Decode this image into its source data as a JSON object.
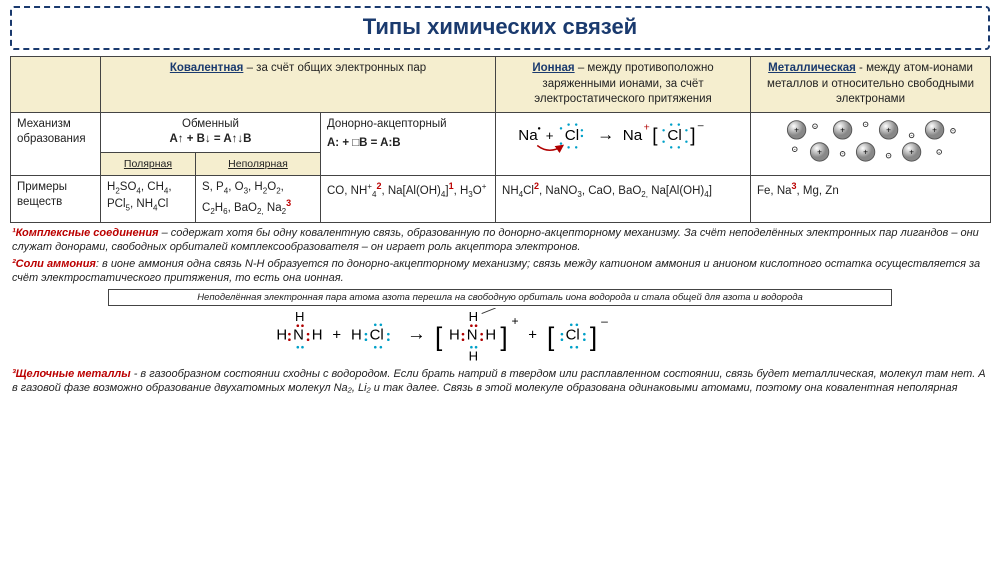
{
  "colors": {
    "navy": "#1a3a6e",
    "beige": "#f5eecf",
    "red": "#b00000",
    "cyan": "#00a0c8",
    "border": "#444444",
    "bg": "#ffffff"
  },
  "title": "Типы химических связей",
  "columns": {
    "covalent": {
      "name": "Ковалентная",
      "desc": "– за счёт общих электронных пар",
      "exchange": "Обменный",
      "exchange_formula": "A↑ + B↓ = A↑↓B",
      "donor": "Донорно-акцепторный",
      "donor_formula": "A: + □B = A:B",
      "polar": "Полярная",
      "nonpolar": "Неполярная"
    },
    "ionic": {
      "name": "Ионная",
      "desc": "– между противоположно заряженными ионами, за счёт электростатического притяжения"
    },
    "metallic": {
      "name": "Металлическая",
      "desc": "- между атом-ионами металлов и относительно свободными электронами"
    }
  },
  "rows": {
    "mechanism": "Механизм образования",
    "examples": "Примеры веществ"
  },
  "examples": {
    "polar": "H₂SO₄, CH₄, PCl₅, NH₄Cl",
    "nonpolar_html": "S, P<sub>4</sub>, O<sub>3</sub>, H<sub>2</sub>O<sub>2</sub>, C<sub>2</sub>H<sub>6</sub>, BaO<sub>2,</sub> Na<sub>2</sub><sup class='sup'>3</sup>",
    "donor_html": "CO, NH<sup>+</sup><sub>4</sub><sup class='sup'>2</sup>, Na[Al(OH)<sub>4</sub>]<sup class='sup'>1</sup>, H<sub>3</sub>O<sup>+</sup>",
    "ionic_html": "NH<sub>4</sub>Cl<sup class='sup'>2</sup>, NaNO<sub>3</sub>, CaO, BaO<sub>2,</sub> Na[Al(OH)<sub>4</sub>]",
    "metallic_html": "Fe, Na<sup class='sup'>3</sup>, Mg, Zn"
  },
  "ionic_diagram": {
    "left_na": "Na",
    "left_cl": "Cl",
    "right_na": "Na",
    "right_cl": "Cl",
    "plus": "+",
    "minus": "–",
    "arrow": "→",
    "dot_color": "#00a0c8"
  },
  "metallic_diagram": {
    "spheres": 7,
    "electron_label": "e",
    "sphere_plus": "+"
  },
  "footnotes": {
    "n1_lead": "¹Комплексные соединения",
    "n1": " – содержат хотя бы одну ковалентную связь, образованную по донорно-акцепторному механизму. За счёт неподелённых электронных пар лигандов – они служат донорами, свободных орбиталей комплексообразователя – он играет роль акцептора электронов.",
    "n2_lead": "²Соли аммония",
    "n2": ": в ионе аммония одна связь N-H образуется по донорно-акцепторному механизму; связь между катионом аммония и анионом кислотного остатка осуществляется за счёт электростатического притяжения, то есть она ионная.",
    "n2_box": "Неподелённая электронная пара атома азота перешла на свободную орбиталь иона водорода и стала общей для азота и водорода",
    "n3_lead": "³Щелочные металлы",
    "n3": " - в газообразном состоянии сходны с водородом. Если брать натрий в твердом или расплавленном состоянии, связь будет металлическая, молекул там нет. А в газовой фазе возможно образование двухатомных молекул Na₂, Li₂ и так далее. Связь в этой молекуле образована одинаковыми атомами, поэтому она ковалентная неполярная"
  },
  "reaction_diagram": {
    "N": "N",
    "H": "H",
    "Cl": "Cl",
    "plus": "+",
    "arrow": "→",
    "charge_plus": "+",
    "charge_minus": "–"
  }
}
